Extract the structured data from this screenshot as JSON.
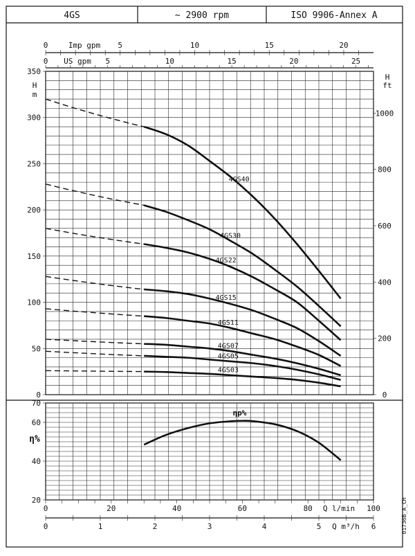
{
  "header": {
    "series": "4GS",
    "speed": "~ 2900 rpm",
    "standard": "ISO 9906-Annex A"
  },
  "side_code": "01736B_A_CH",
  "top_axes": {
    "imp": {
      "label": "Imp gpm",
      "ticks": [
        "0",
        "5",
        "10",
        "15",
        "20"
      ]
    },
    "us": {
      "label": "US gpm",
      "ticks": [
        "0",
        "5",
        "10",
        "15",
        "20",
        "25"
      ]
    }
  },
  "bottom_axes": {
    "lmin": {
      "label": "Q l/min",
      "ticks": [
        "0",
        "20",
        "40",
        "60",
        "80",
        "100"
      ]
    },
    "m3h": {
      "label": "Q m³/h",
      "ticks": [
        "0",
        "1",
        "2",
        "3",
        "4",
        "5",
        "6"
      ]
    }
  },
  "chart_data": [
    {
      "type": "line",
      "x_units": "m3/h",
      "xlim": [
        0,
        6
      ],
      "y_units": "m",
      "ylim": [
        0,
        350
      ],
      "left_axis": {
        "title_top": "H",
        "title_bottom": "m",
        "ticks": [
          "0",
          "50",
          "100",
          "150",
          "200",
          "250",
          "300",
          "350"
        ]
      },
      "right_axis": {
        "title_top": "H",
        "title_bottom": "ft",
        "ticks": [
          "0",
          "200",
          "400",
          "600",
          "800",
          "1000"
        ]
      },
      "series": [
        {
          "name": "4GS40",
          "dashed_start": 320,
          "x": [
            1.8,
            2.2,
            2.6,
            3.0,
            3.4,
            3.8,
            4.2,
            4.6,
            5.0,
            5.4
          ],
          "values": [
            290,
            282,
            270,
            253,
            235,
            214,
            190,
            163,
            134,
            104
          ]
        },
        {
          "name": "4GS30",
          "dashed_start": 228,
          "x": [
            1.8,
            2.2,
            2.6,
            3.0,
            3.4,
            3.8,
            4.2,
            4.6,
            5.0,
            5.4
          ],
          "values": [
            205,
            198,
            189,
            179,
            166,
            152,
            135,
            117,
            96,
            74
          ]
        },
        {
          "name": "4GS22",
          "dashed_start": 180,
          "x": [
            1.8,
            2.2,
            2.6,
            3.0,
            3.4,
            3.8,
            4.2,
            4.6,
            5.0,
            5.4
          ],
          "values": [
            163,
            159,
            154,
            147,
            138,
            127,
            114,
            100,
            80,
            59
          ]
        },
        {
          "name": "4GS15",
          "dashed_start": 128,
          "x": [
            1.8,
            2.2,
            2.6,
            3.0,
            3.4,
            3.8,
            4.2,
            4.6,
            5.0,
            5.4
          ],
          "values": [
            114,
            112,
            109,
            104,
            98,
            91,
            82,
            72,
            58,
            42
          ]
        },
        {
          "name": "4GS11",
          "dashed_start": 93,
          "x": [
            1.8,
            2.2,
            2.6,
            3.0,
            3.4,
            3.8,
            4.2,
            4.6,
            5.0,
            5.4
          ],
          "values": [
            85,
            83,
            80,
            77,
            72,
            66,
            60,
            52,
            43,
            31
          ]
        },
        {
          "name": "4GS07",
          "dashed_start": 60,
          "x": [
            1.8,
            2.2,
            2.6,
            3.0,
            3.4,
            3.8,
            4.2,
            4.6,
            5.0,
            5.4
          ],
          "values": [
            55,
            54,
            52,
            50,
            47,
            43,
            39,
            34,
            28,
            21
          ]
        },
        {
          "name": "4GS05",
          "dashed_start": 47,
          "x": [
            1.8,
            2.2,
            2.6,
            3.0,
            3.4,
            3.8,
            4.2,
            4.6,
            5.0,
            5.4
          ],
          "values": [
            42,
            41,
            40,
            38,
            36,
            34,
            31,
            27,
            22,
            16
          ]
        },
        {
          "name": "4GS03",
          "dashed_start": 26,
          "x": [
            1.8,
            2.2,
            2.6,
            3.0,
            3.4,
            3.8,
            4.2,
            4.6,
            5.0,
            5.4
          ],
          "values": [
            25,
            24.5,
            23.5,
            22.5,
            21,
            19.5,
            18,
            16,
            13,
            9
          ]
        }
      ]
    },
    {
      "type": "line",
      "x_units": "m3/h",
      "xlim": [
        0,
        6
      ],
      "ylim": [
        20,
        70
      ],
      "left_axis": {
        "title": "η%",
        "ticks": [
          "20",
          "40",
          "60",
          "70"
        ]
      },
      "series": [
        {
          "name": "ηp%",
          "x": [
            1.8,
            2.2,
            2.6,
            3.0,
            3.4,
            3.6,
            3.8,
            4.2,
            4.6,
            5.0,
            5.4
          ],
          "values": [
            48.5,
            53.5,
            57,
            59.5,
            60.6,
            60.8,
            60.6,
            59,
            55.5,
            49.5,
            40.5
          ]
        }
      ]
    }
  ]
}
